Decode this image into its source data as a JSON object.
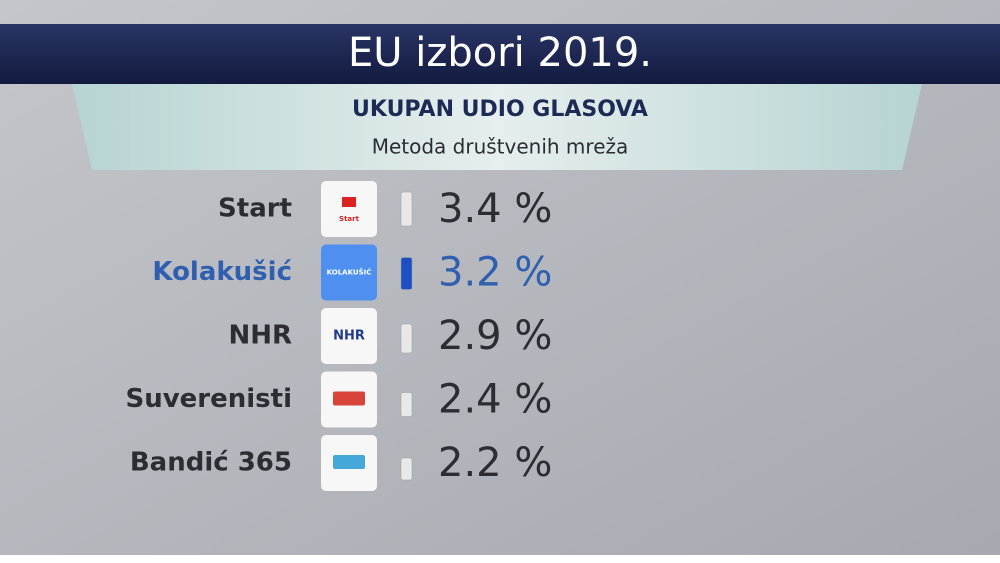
{
  "chart_data": {
    "type": "bar",
    "title": "EU izbori 2019.",
    "subtitle": "UKUPAN UDIO GLASOVA",
    "note": "Metoda društvenih mreža",
    "categories": [
      "Start",
      "Kolakušić",
      "NHR",
      "Suverenisti",
      "Bandić 365"
    ],
    "logo_labels": [
      "Start",
      "KOLAKUŠIĆ",
      "NHR",
      null,
      null
    ],
    "values": [
      3.4,
      3.2,
      2.9,
      2.4,
      2.2
    ],
    "value_labels": [
      "3.4 %",
      "3.2 %",
      "2.9 %",
      "2.4 %",
      "2.2 %"
    ],
    "colors": [
      "#e8e8e8",
      "#1c4fc4",
      "#e8e8e8",
      "#e8e8e8",
      "#e8e8e8"
    ],
    "label_colors": [
      "#2b2d33",
      "#2f5fae",
      "#2b2d33",
      "#2b2d33",
      "#2b2d33"
    ]
  }
}
